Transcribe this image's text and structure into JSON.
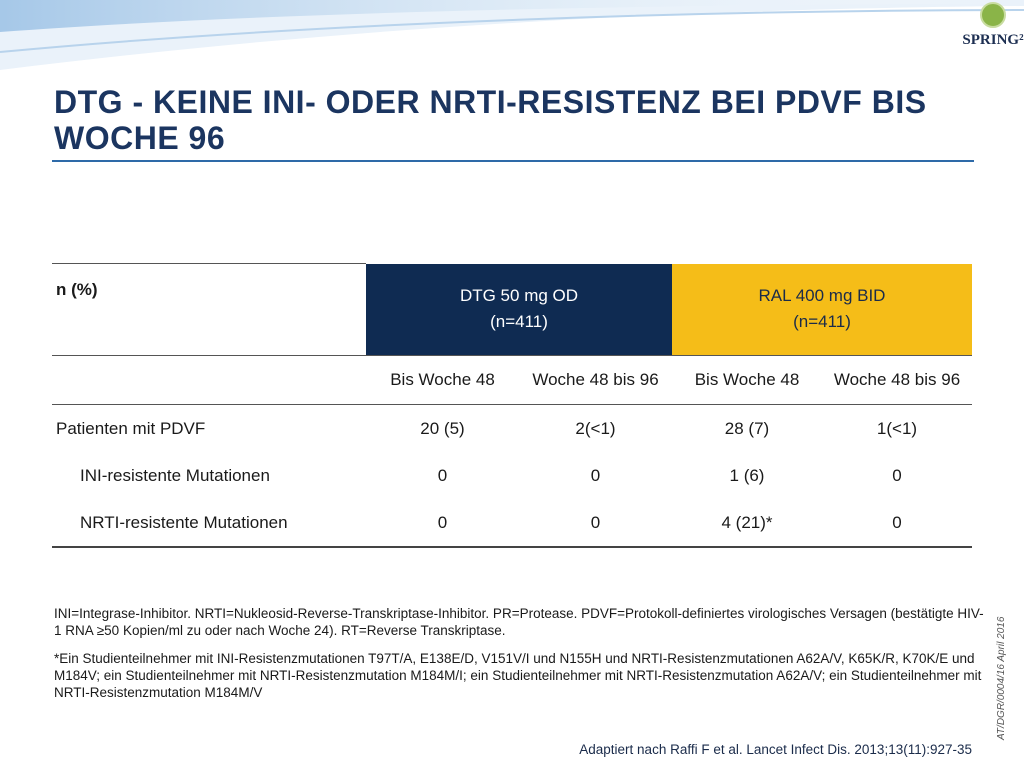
{
  "header": {
    "title": "DTG - KEINE INI- ODER NRTI-RESISTENZ BEI PDVF BIS WOCHE 96",
    "logo_text": "SPRING²"
  },
  "colors": {
    "dtg_header": "#0f2b52",
    "ral_header": "#f5bd18",
    "title": "#1b3560"
  },
  "table": {
    "stub_header": "n (%)",
    "groups": [
      {
        "line1": "DTG 50 mg OD",
        "line2": "(n=411)"
      },
      {
        "line1": "RAL 400 mg BID",
        "line2": "(n=411)"
      }
    ],
    "subheaders": [
      "Bis Woche 48",
      "Woche 48 bis 96",
      "Bis Woche 48",
      "Woche 48 bis 96"
    ],
    "rows": [
      {
        "label": "Patienten mit PDVF",
        "values": [
          "20 (5)",
          "2(<1)",
          "28 (7)",
          "1(<1)"
        ]
      },
      {
        "label": "INI-resistente Mutationen",
        "values": [
          "0",
          "0",
          "1 (6)",
          "0"
        ]
      },
      {
        "label": "NRTI-resistente Mutationen",
        "values": [
          "0",
          "0",
          "4 (21)*",
          "0"
        ]
      }
    ]
  },
  "footnotes": {
    "abbreviations": "INI=Integrase-Inhibitor. NRTI=Nukleosid-Reverse-Transkriptase-Inhibitor. PR=Protease. PDVF=Protokoll-definiertes virologisches Versagen (bestätigte HIV-1 RNA ≥50 Kopien/ml zu oder nach Woche 24). RT=Reverse Transkriptase.",
    "asterisk": "*Ein Studienteilnehmer mit INI-Resistenzmutationen T97T/A, E138E/D, V151V/I und N155H und NRTI-Resistenzmutationen A62A/V, K65K/R, K70K/E und M184V; ein Studienteilnehmer mit NRTI-Resistenzmutation M184M/I; ein Studienteilnehmer mit NRTI-Resistenzmutation A62A/V; ein Studienteilnehmer mit NRTI-Resistenzmutation M184M/V",
    "source": "Adaptiert nach Raffi F et al. Lancet Infect Dis. 2013;13(11):927-35"
  },
  "doc_code": "AT/DGR/0004/16  April 2016"
}
